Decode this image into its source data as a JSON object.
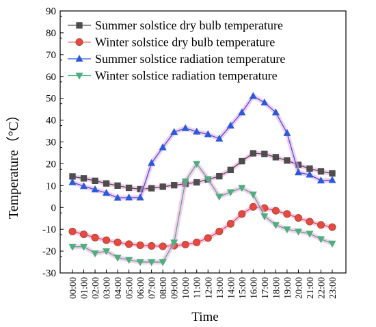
{
  "chart_data": {
    "type": "line",
    "title": "",
    "xlabel": "Time",
    "ylabel": "Temperature（°C）",
    "ylim": [
      -30,
      90
    ],
    "yticks": [
      -30,
      -20,
      -10,
      0,
      10,
      20,
      30,
      40,
      50,
      60,
      70,
      80,
      90
    ],
    "grid": false,
    "legend_position": "top-left",
    "categories": [
      "00:00",
      "01:00",
      "02:00",
      "03:00",
      "04:00",
      "05:00",
      "06:00",
      "07:00",
      "08:00",
      "09:00",
      "10:00",
      "11:00",
      "12:00",
      "13:00",
      "14:00",
      "15:00",
      "16:00",
      "17:00",
      "18:00",
      "19:00",
      "20:00",
      "21:00",
      "22:00",
      "23:00"
    ],
    "series": [
      {
        "name": "Summer solstice dry bulb temperature",
        "color": "#4d4d4d",
        "marker": "square",
        "values": [
          14.2,
          13.3,
          12.2,
          11.0,
          10.0,
          9.0,
          8.4,
          8.8,
          9.5,
          10.2,
          10.8,
          11.5,
          12.8,
          14.3,
          17.2,
          21.2,
          24.8,
          24.5,
          23.0,
          21.5,
          19.5,
          17.8,
          16.5,
          15.6
        ]
      },
      {
        "name": "Winter solstice dry bulb temperature",
        "color": "#e8483f",
        "marker": "circle",
        "values": [
          -11.0,
          -12.3,
          -13.8,
          -15.0,
          -16.0,
          -16.8,
          -17.3,
          -17.6,
          -17.8,
          -17.5,
          -17.0,
          -16.0,
          -14.0,
          -11.0,
          -7.5,
          -3.0,
          0.3,
          -0.3,
          -1.5,
          -3.0,
          -4.8,
          -6.5,
          -8.0,
          -9.0
        ]
      },
      {
        "name": "Summer solstice radiation temperature",
        "color": "#2a5bd7",
        "marker": "triangle-up",
        "values": [
          11.5,
          9.7,
          8.2,
          6.6,
          4.4,
          4.5,
          4.5,
          20.3,
          27.5,
          34.5,
          36.3,
          34.7,
          33.5,
          31.5,
          37.5,
          43.5,
          51.0,
          48.0,
          43.5,
          34.0,
          16.0,
          15.0,
          12.3,
          12.5
        ]
      },
      {
        "name": "Winter solstice radiation temperature",
        "color": "#4caf7d",
        "marker": "triangle-down",
        "values": [
          -18.0,
          -18.0,
          -21.0,
          -20.0,
          -23.0,
          -24.0,
          -25.0,
          -25.0,
          -25.0,
          -16.0,
          12.0,
          20.0,
          13.0,
          5.0,
          7.0,
          9.0,
          6.0,
          -4.0,
          -8.0,
          -10.0,
          -11.0,
          -12.0,
          -14.5,
          -16.5
        ]
      }
    ],
    "highlight_color": "#f4a6e6"
  }
}
